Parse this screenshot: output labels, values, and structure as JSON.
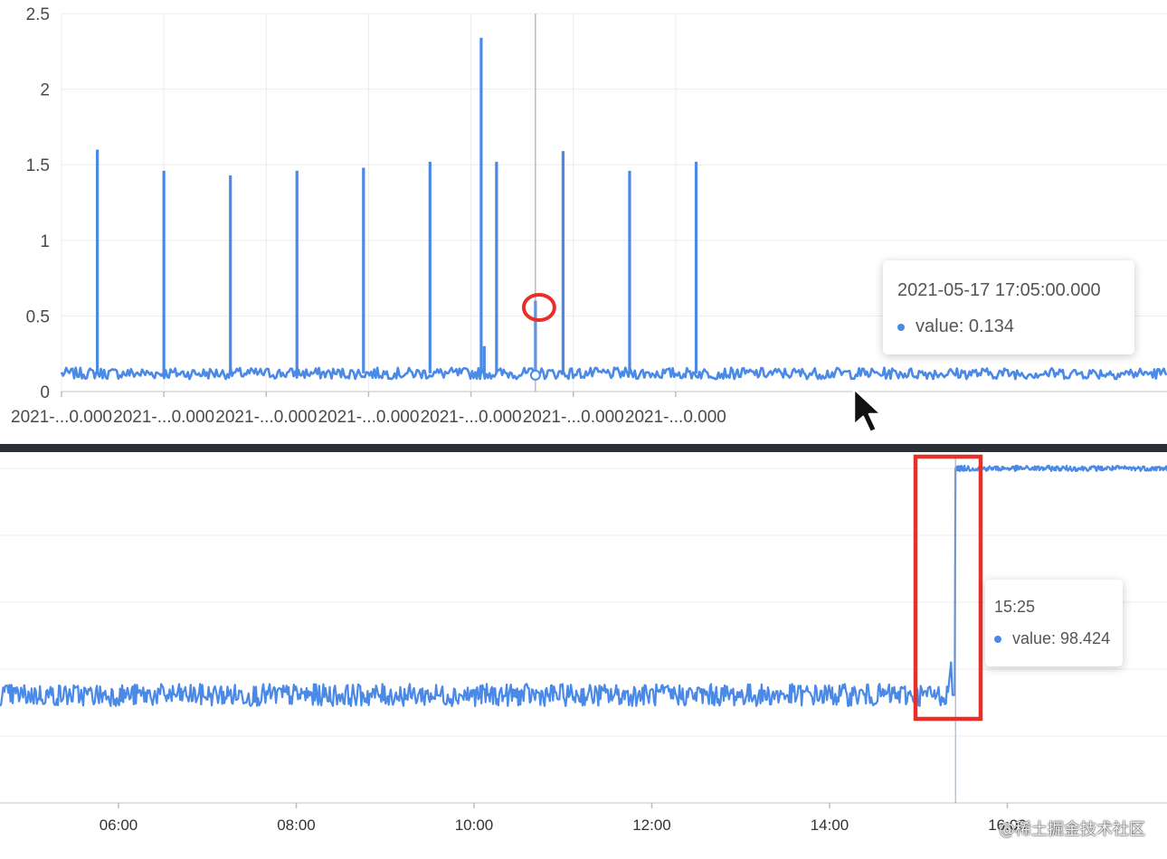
{
  "colors": {
    "series": "#4a89e6",
    "highlight": "#e8302a",
    "divider": "#2b2f36",
    "grid": "#ececec"
  },
  "chart_data": [
    {
      "type": "line",
      "title": "",
      "xlabel": "",
      "ylabel": "",
      "ylim": [
        0,
        2.5
      ],
      "y_ticks": [
        "0",
        "0.5",
        "1",
        "1.5",
        "2",
        "2.5"
      ],
      "x_tick_labels": [
        "2021-...0.000",
        "2021-...0.000",
        "2021-...0.000",
        "2021-...0.000",
        "2021-...0.000",
        "2021-...0.000",
        "2021-...0.000"
      ],
      "x_range": [
        0,
        10.8
      ],
      "baseline": 0.12,
      "spikes": [
        {
          "x": 0.35,
          "y": 1.6
        },
        {
          "x": 1.0,
          "y": 1.46
        },
        {
          "x": 1.65,
          "y": 1.43
        },
        {
          "x": 2.3,
          "y": 1.46
        },
        {
          "x": 2.95,
          "y": 1.48
        },
        {
          "x": 3.6,
          "y": 1.52
        },
        {
          "x": 4.1,
          "y": 2.34
        },
        {
          "x": 4.13,
          "y": 0.3
        },
        {
          "x": 4.25,
          "y": 1.52
        },
        {
          "x": 4.63,
          "y": 0.6
        },
        {
          "x": 4.9,
          "y": 1.59
        },
        {
          "x": 5.55,
          "y": 1.46
        },
        {
          "x": 6.2,
          "y": 1.52
        }
      ],
      "tooltip": {
        "time": "2021-05-17 17:05:00.000",
        "label": "value: 0.134"
      },
      "cursor_x": 4.63
    },
    {
      "type": "line",
      "title": "",
      "xlabel": "",
      "ylabel": "",
      "x_ticks": [
        "06:00",
        "08:00",
        "10:00",
        "12:00",
        "14:00",
        "16:00"
      ],
      "x_range": [
        "04:40",
        "18:00"
      ],
      "segments": [
        {
          "x0": "04:40",
          "x1": "15:20",
          "y": 22
        },
        {
          "x0": "15:27",
          "x1": "18:00",
          "y": 98.4
        }
      ],
      "tooltip": {
        "time": "15:25",
        "label": "value: 98.424"
      },
      "cursor_x": "15:25"
    }
  ],
  "watermark": "@稀土掘金技术社区"
}
